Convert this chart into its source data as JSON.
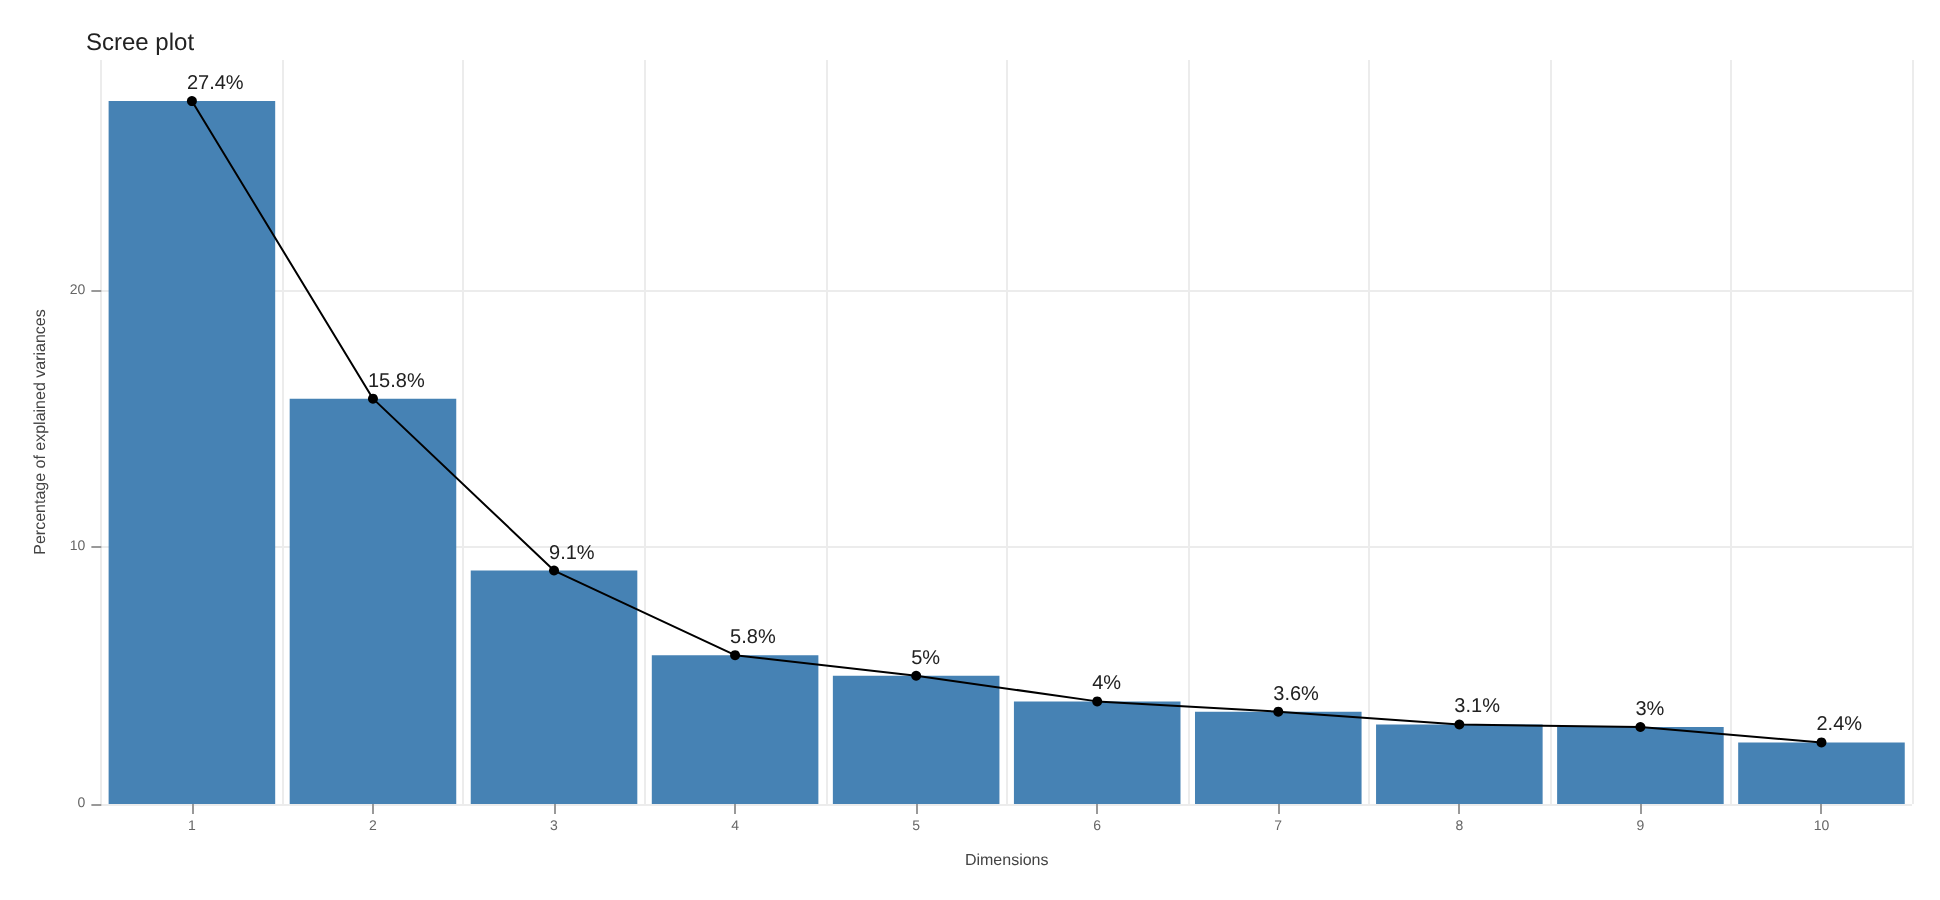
{
  "chart_data": {
    "type": "bar",
    "title": "Scree plot",
    "xlabel": "Dimensions",
    "ylabel": "Percentage of explained variances",
    "categories": [
      "1",
      "2",
      "3",
      "4",
      "5",
      "6",
      "7",
      "8",
      "9",
      "10"
    ],
    "series": [
      {
        "color": "#4682b4",
        "values": [
          27.4,
          15.8,
          9.1,
          5.8,
          5,
          4,
          3.6,
          3.1,
          3,
          2.4
        ]
      },
      {
        "type": "line",
        "color": "#000000",
        "values": [
          27.4,
          15.8,
          9.1,
          5.8,
          5,
          4,
          3.6,
          3.1,
          3,
          2.4
        ],
        "value_labels": [
          "27.4%",
          "15.8%",
          "9.1%",
          "5.8%",
          "5%",
          "4%",
          "3.6%",
          "3.1%",
          "3%",
          "2.4%"
        ]
      }
    ],
    "ylim": [
      0,
      29
    ],
    "yticks": [
      0,
      10,
      20
    ],
    "grid": true,
    "marker": "circle",
    "line_style": "solid"
  }
}
